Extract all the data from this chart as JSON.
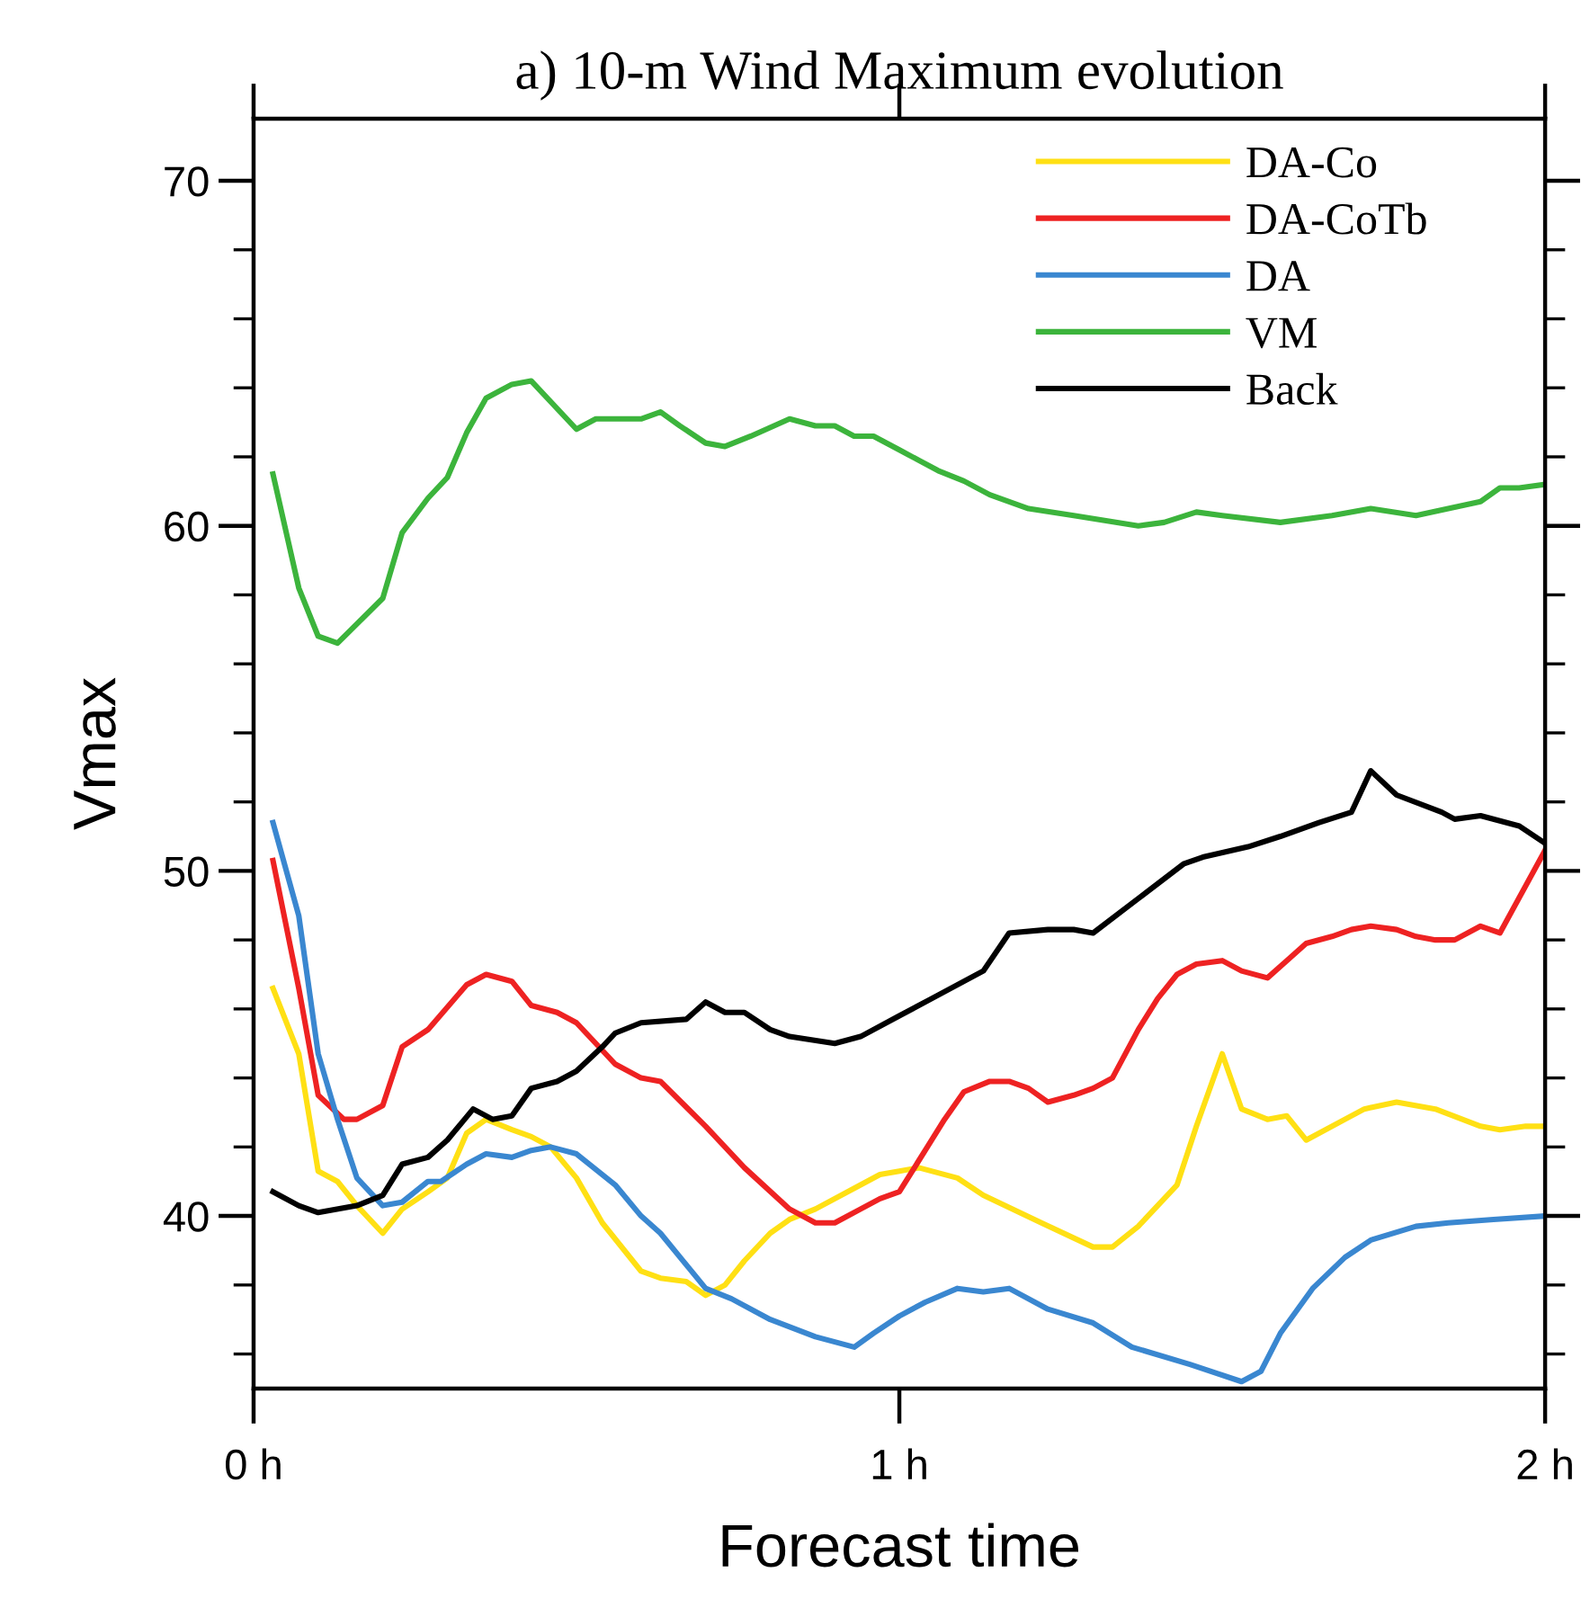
{
  "chart_data": {
    "type": "line",
    "title": "a) 10-m Wind Maximum evolution",
    "xlabel": "Forecast time",
    "ylabel": "Vmax",
    "xlim": [
      0,
      2
    ],
    "xticks": [
      {
        "value": 0,
        "label": "0 h"
      },
      {
        "value": 1,
        "label": "1 h"
      },
      {
        "value": 2,
        "label": "2 h"
      }
    ],
    "ylim": [
      35,
      71.8
    ],
    "yticks": [
      {
        "value": 36,
        "label": null
      },
      {
        "value": 38,
        "label": null
      },
      40,
      {
        "value": 42,
        "label": null
      },
      {
        "value": 44,
        "label": null
      },
      {
        "value": 46,
        "label": null
      },
      {
        "value": 48,
        "label": null
      },
      50,
      {
        "value": 52,
        "label": null
      },
      {
        "value": 54,
        "label": null
      },
      {
        "value": 56,
        "label": null
      },
      {
        "value": 58,
        "label": null
      },
      60,
      {
        "value": 62,
        "label": null
      },
      {
        "value": 64,
        "label": null
      },
      {
        "value": 66,
        "label": null
      },
      {
        "value": 68,
        "label": null
      },
      70
    ],
    "grid": false,
    "legend": "top right",
    "marker": "none",
    "line_style": "solid",
    "series": [
      {
        "name": "DA-Co",
        "color": "#ffe014",
        "x": [
          0.03,
          0.07,
          0.1,
          0.13,
          0.16,
          0.2,
          0.23,
          0.27,
          0.3,
          0.33,
          0.36,
          0.4,
          0.43,
          0.46,
          0.5,
          0.54,
          0.6,
          0.63,
          0.67,
          0.7,
          0.73,
          0.76,
          0.8,
          0.83,
          0.87,
          0.94,
          0.97,
          1.0,
          1.03,
          1.09,
          1.13,
          1.22,
          1.3,
          1.33,
          1.37,
          1.43,
          1.46,
          1.5,
          1.53,
          1.57,
          1.6,
          1.63,
          1.69,
          1.72,
          1.77,
          1.83,
          1.9,
          1.93,
          1.97,
          2.0
        ],
        "values": [
          46.6,
          44.7,
          41.3,
          41.0,
          40.3,
          39.5,
          40.2,
          40.7,
          41.1,
          42.4,
          42.8,
          42.5,
          42.3,
          42.0,
          41.1,
          39.8,
          38.4,
          38.2,
          38.1,
          37.7,
          38.0,
          38.7,
          39.5,
          39.9,
          40.2,
          40.9,
          41.2,
          41.3,
          41.4,
          41.1,
          40.6,
          39.8,
          39.1,
          39.1,
          39.7,
          40.9,
          42.6,
          44.7,
          43.1,
          42.8,
          42.9,
          42.2,
          42.8,
          43.1,
          43.3,
          43.1,
          42.6,
          42.5,
          42.6,
          42.6
        ]
      },
      {
        "name": "DA-CoTb",
        "color": "#ee2222",
        "x": [
          0.03,
          0.07,
          0.1,
          0.14,
          0.16,
          0.2,
          0.23,
          0.27,
          0.33,
          0.36,
          0.4,
          0.43,
          0.47,
          0.5,
          0.56,
          0.6,
          0.63,
          0.7,
          0.76,
          0.83,
          0.87,
          0.9,
          0.94,
          0.97,
          1.0,
          1.07,
          1.1,
          1.14,
          1.17,
          1.2,
          1.23,
          1.27,
          1.3,
          1.33,
          1.37,
          1.4,
          1.43,
          1.46,
          1.5,
          1.53,
          1.57,
          1.6,
          1.63,
          1.67,
          1.7,
          1.73,
          1.77,
          1.8,
          1.83,
          1.86,
          1.9,
          1.93,
          2.0
        ],
        "values": [
          50.3,
          46.6,
          43.5,
          42.8,
          42.8,
          43.2,
          44.9,
          45.4,
          46.7,
          47.0,
          46.8,
          46.1,
          45.9,
          45.6,
          44.4,
          44.0,
          43.9,
          42.6,
          41.4,
          40.2,
          39.8,
          39.8,
          40.2,
          40.5,
          40.7,
          42.8,
          43.6,
          43.9,
          43.9,
          43.7,
          43.3,
          43.5,
          43.7,
          44.0,
          45.4,
          46.3,
          47.0,
          47.3,
          47.4,
          47.1,
          46.9,
          47.4,
          47.9,
          48.1,
          48.3,
          48.4,
          48.3,
          48.1,
          48.0,
          48.0,
          48.4,
          48.2,
          50.6
        ]
      },
      {
        "name": "DA",
        "color": "#3a87d0",
        "x": [
          0.03,
          0.07,
          0.1,
          0.13,
          0.16,
          0.2,
          0.23,
          0.27,
          0.29,
          0.33,
          0.36,
          0.4,
          0.43,
          0.46,
          0.5,
          0.54,
          0.56,
          0.6,
          0.63,
          0.7,
          0.74,
          0.8,
          0.87,
          0.93,
          0.96,
          1.0,
          1.04,
          1.09,
          1.13,
          1.17,
          1.23,
          1.3,
          1.36,
          1.45,
          1.53,
          1.56,
          1.59,
          1.64,
          1.69,
          1.73,
          1.8,
          1.85,
          1.92,
          2.0
        ],
        "values": [
          51.4,
          48.7,
          44.7,
          42.8,
          41.1,
          40.3,
          40.4,
          41.0,
          41.0,
          41.5,
          41.8,
          41.7,
          41.9,
          42.0,
          41.8,
          41.2,
          40.9,
          40.0,
          39.5,
          37.9,
          37.6,
          37.0,
          36.5,
          36.2,
          36.6,
          37.1,
          37.5,
          37.9,
          37.8,
          37.9,
          37.3,
          36.9,
          36.2,
          35.7,
          35.2,
          35.5,
          36.6,
          37.9,
          38.8,
          39.3,
          39.7,
          39.8,
          39.9,
          40.0
        ]
      },
      {
        "name": "VM",
        "color": "#3cb43c",
        "x": [
          0.03,
          0.07,
          0.1,
          0.13,
          0.2,
          0.23,
          0.27,
          0.3,
          0.33,
          0.36,
          0.4,
          0.43,
          0.5,
          0.53,
          0.6,
          0.63,
          0.66,
          0.7,
          0.73,
          0.77,
          0.83,
          0.87,
          0.9,
          0.93,
          0.96,
          1.0,
          1.06,
          1.1,
          1.14,
          1.2,
          1.27,
          1.37,
          1.41,
          1.46,
          1.5,
          1.59,
          1.67,
          1.73,
          1.8,
          1.85,
          1.9,
          1.93,
          1.96,
          2.0
        ],
        "values": [
          61.5,
          58.2,
          56.8,
          56.6,
          57.9,
          59.8,
          60.8,
          61.4,
          62.7,
          63.7,
          64.1,
          64.2,
          62.8,
          63.1,
          63.1,
          63.3,
          62.9,
          62.4,
          62.3,
          62.6,
          63.1,
          62.9,
          62.9,
          62.6,
          62.6,
          62.2,
          61.6,
          61.3,
          60.9,
          60.5,
          60.3,
          60.0,
          60.1,
          60.4,
          60.3,
          60.1,
          60.3,
          60.5,
          60.3,
          60.5,
          60.7,
          61.1,
          61.1,
          61.2
        ]
      },
      {
        "name": "Back",
        "color": "#000000",
        "x": [
          0.03,
          0.07,
          0.1,
          0.16,
          0.2,
          0.23,
          0.27,
          0.3,
          0.34,
          0.37,
          0.4,
          0.43,
          0.47,
          0.5,
          0.54,
          0.56,
          0.6,
          0.67,
          0.7,
          0.73,
          0.76,
          0.8,
          0.83,
          0.9,
          0.94,
          1.0,
          1.05,
          1.13,
          1.17,
          1.23,
          1.27,
          1.3,
          1.37,
          1.44,
          1.47,
          1.54,
          1.59,
          1.65,
          1.7,
          1.73,
          1.77,
          1.84,
          1.86,
          1.9,
          1.96,
          2.0
        ],
        "values": [
          40.7,
          40.3,
          40.1,
          40.3,
          40.6,
          41.5,
          41.7,
          42.2,
          43.1,
          42.8,
          42.9,
          43.7,
          43.9,
          44.2,
          44.9,
          45.3,
          45.6,
          45.7,
          46.2,
          45.9,
          45.9,
          45.4,
          45.2,
          45.0,
          45.2,
          45.8,
          46.3,
          47.1,
          48.2,
          48.3,
          48.3,
          48.2,
          49.2,
          50.2,
          50.4,
          50.7,
          51.0,
          51.4,
          51.7,
          52.9,
          52.2,
          51.7,
          51.5,
          51.6,
          51.3,
          50.8
        ]
      }
    ]
  }
}
